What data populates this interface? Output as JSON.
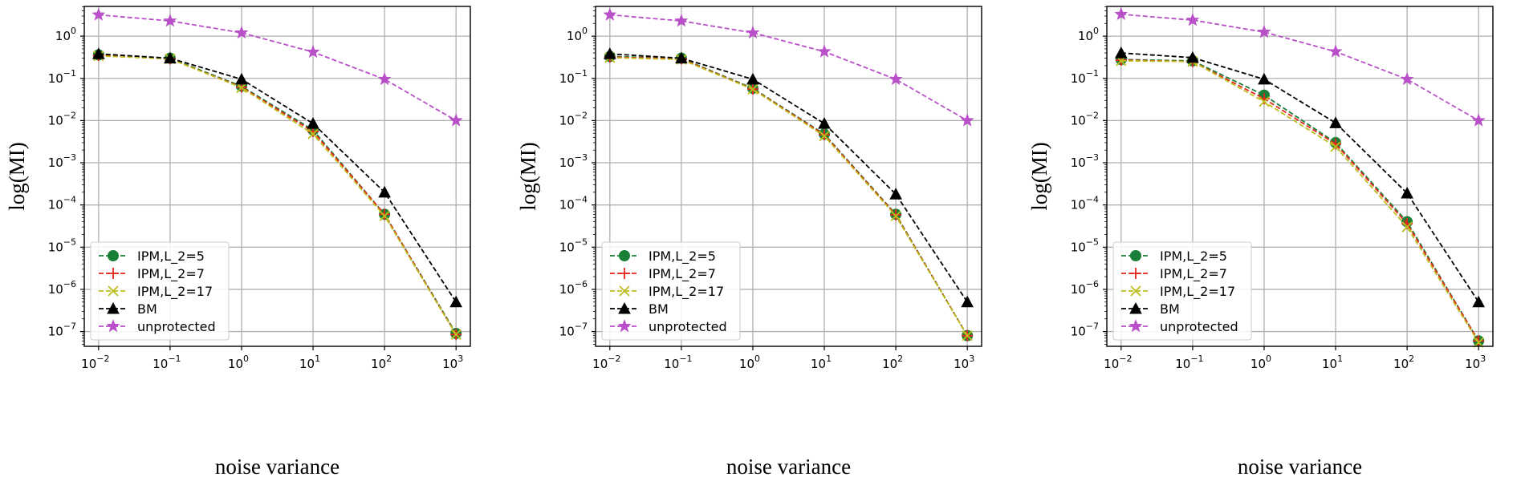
{
  "chart_data": [
    {
      "type": "line",
      "xlabel": "noise variance",
      "ylabel": "log(MI)",
      "xscale": "log",
      "yscale": "log",
      "xlim": [
        0.01,
        1000
      ],
      "ylim": [
        1e-07,
        3.2
      ],
      "grid": true,
      "legend_position": "lower-left",
      "x": [
        0.01,
        0.1,
        1,
        10,
        100,
        1000
      ],
      "x_ticks": [
        {
          "base": "10",
          "exp": "−2"
        },
        {
          "base": "10",
          "exp": "−1"
        },
        {
          "base": "10",
          "exp": "0"
        },
        {
          "base": "10",
          "exp": "1"
        },
        {
          "base": "10",
          "exp": "2"
        },
        {
          "base": "10",
          "exp": "3"
        }
      ],
      "y_ticks": [
        {
          "base": "10",
          "exp": "−7"
        },
        {
          "base": "10",
          "exp": "−6"
        },
        {
          "base": "10",
          "exp": "−5"
        },
        {
          "base": "10",
          "exp": "−4"
        },
        {
          "base": "10",
          "exp": "−3"
        },
        {
          "base": "10",
          "exp": "−2"
        },
        {
          "base": "10",
          "exp": "−1"
        },
        {
          "base": "10",
          "exp": "0"
        }
      ],
      "series": [
        {
          "name": "IPM,L_2=5",
          "color": "#1a7f37",
          "marker": "circle",
          "values": [
            0.36,
            0.3,
            0.065,
            0.006,
            6e-05,
            9e-08
          ]
        },
        {
          "name": "IPM,L_2=7",
          "color": "#e8251c",
          "marker": "plus",
          "values": [
            0.35,
            0.29,
            0.062,
            0.0055,
            6e-05,
            8.5e-08
          ]
        },
        {
          "name": "IPM,L_2=17",
          "color": "#bdbd1d",
          "marker": "x",
          "values": [
            0.34,
            0.29,
            0.06,
            0.0048,
            5.5e-05,
            8.5e-08
          ]
        },
        {
          "name": "BM",
          "color": "#000000",
          "marker": "triangle",
          "values": [
            0.38,
            0.3,
            0.095,
            0.0085,
            0.0002,
            5e-07
          ]
        },
        {
          "name": "unprotected",
          "color": "#b94fc9",
          "marker": "star",
          "values": [
            3.2,
            2.3,
            1.2,
            0.42,
            0.095,
            0.01
          ]
        }
      ]
    },
    {
      "type": "line",
      "xlabel": "noise variance",
      "ylabel": "log(MI)",
      "xscale": "log",
      "yscale": "log",
      "xlim": [
        0.01,
        1000
      ],
      "ylim": [
        1e-07,
        3.2
      ],
      "grid": true,
      "legend_position": "lower-left",
      "x": [
        0.01,
        0.1,
        1,
        10,
        100,
        1000
      ],
      "x_ticks": [
        {
          "base": "10",
          "exp": "−2"
        },
        {
          "base": "10",
          "exp": "−1"
        },
        {
          "base": "10",
          "exp": "0"
        },
        {
          "base": "10",
          "exp": "1"
        },
        {
          "base": "10",
          "exp": "2"
        },
        {
          "base": "10",
          "exp": "3"
        }
      ],
      "y_ticks": [
        {
          "base": "10",
          "exp": "−7"
        },
        {
          "base": "10",
          "exp": "−6"
        },
        {
          "base": "10",
          "exp": "−5"
        },
        {
          "base": "10",
          "exp": "−4"
        },
        {
          "base": "10",
          "exp": "−3"
        },
        {
          "base": "10",
          "exp": "−2"
        },
        {
          "base": "10",
          "exp": "−1"
        },
        {
          "base": "10",
          "exp": "0"
        }
      ],
      "series": [
        {
          "name": "IPM,L_2=5",
          "color": "#1a7f37",
          "marker": "circle",
          "values": [
            0.33,
            0.3,
            0.058,
            0.0048,
            6e-05,
            8e-08
          ]
        },
        {
          "name": "IPM,L_2=7",
          "color": "#e8251c",
          "marker": "plus",
          "values": [
            0.32,
            0.29,
            0.056,
            0.0046,
            5.8e-05,
            8e-08
          ]
        },
        {
          "name": "IPM,L_2=17",
          "color": "#bdbd1d",
          "marker": "x",
          "values": [
            0.31,
            0.28,
            0.055,
            0.0043,
            5.5e-05,
            8e-08
          ]
        },
        {
          "name": "BM",
          "color": "#000000",
          "marker": "triangle",
          "values": [
            0.38,
            0.3,
            0.095,
            0.0085,
            0.00018,
            5e-07
          ]
        },
        {
          "name": "unprotected",
          "color": "#b94fc9",
          "marker": "star",
          "values": [
            3.2,
            2.3,
            1.2,
            0.43,
            0.095,
            0.01
          ]
        }
      ]
    },
    {
      "type": "line",
      "xlabel": "noise variance",
      "ylabel": "log(MI)",
      "xscale": "log",
      "yscale": "log",
      "xlim": [
        0.01,
        1000
      ],
      "ylim": [
        1e-07,
        3.2
      ],
      "grid": true,
      "legend_position": "lower-left",
      "x": [
        0.01,
        0.1,
        1,
        10,
        100,
        1000
      ],
      "x_ticks": [
        {
          "base": "10",
          "exp": "−2"
        },
        {
          "base": "10",
          "exp": "−1"
        },
        {
          "base": "10",
          "exp": "0"
        },
        {
          "base": "10",
          "exp": "1"
        },
        {
          "base": "10",
          "exp": "2"
        },
        {
          "base": "10",
          "exp": "3"
        }
      ],
      "y_ticks": [
        {
          "base": "10",
          "exp": "−7"
        },
        {
          "base": "10",
          "exp": "−6"
        },
        {
          "base": "10",
          "exp": "−5"
        },
        {
          "base": "10",
          "exp": "−4"
        },
        {
          "base": "10",
          "exp": "−3"
        },
        {
          "base": "10",
          "exp": "−2"
        },
        {
          "base": "10",
          "exp": "−1"
        },
        {
          "base": "10",
          "exp": "0"
        }
      ],
      "series": [
        {
          "name": "IPM,L_2=5",
          "color": "#1a7f37",
          "marker": "circle",
          "values": [
            0.28,
            0.26,
            0.04,
            0.003,
            4e-05,
            6e-08
          ]
        },
        {
          "name": "IPM,L_2=7",
          "color": "#e8251c",
          "marker": "plus",
          "values": [
            0.27,
            0.25,
            0.033,
            0.0028,
            3.6e-05,
            6e-08
          ]
        },
        {
          "name": "IPM,L_2=17",
          "color": "#bdbd1d",
          "marker": "x",
          "values": [
            0.26,
            0.25,
            0.028,
            0.0024,
            3e-05,
            5.5e-08
          ]
        },
        {
          "name": "BM",
          "color": "#000000",
          "marker": "triangle",
          "values": [
            0.4,
            0.31,
            0.095,
            0.0088,
            0.00019,
            5e-07
          ]
        },
        {
          "name": "unprotected",
          "color": "#b94fc9",
          "marker": "star",
          "values": [
            3.3,
            2.4,
            1.25,
            0.43,
            0.095,
            0.01
          ]
        }
      ]
    }
  ]
}
